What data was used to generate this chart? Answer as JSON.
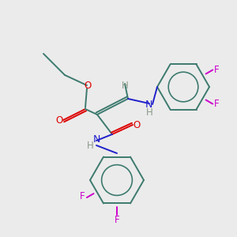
{
  "background_color": "#ebebeb",
  "bond_color": "#3d7a6e",
  "atom_colors": {
    "O": "#dd0000",
    "N": "#2020cc",
    "F": "#cc00cc",
    "H": "#8a9a8a",
    "C": "#3d7a6e"
  },
  "figsize": [
    3.0,
    3.0
  ],
  "dpi": 100,
  "lw": 1.4
}
